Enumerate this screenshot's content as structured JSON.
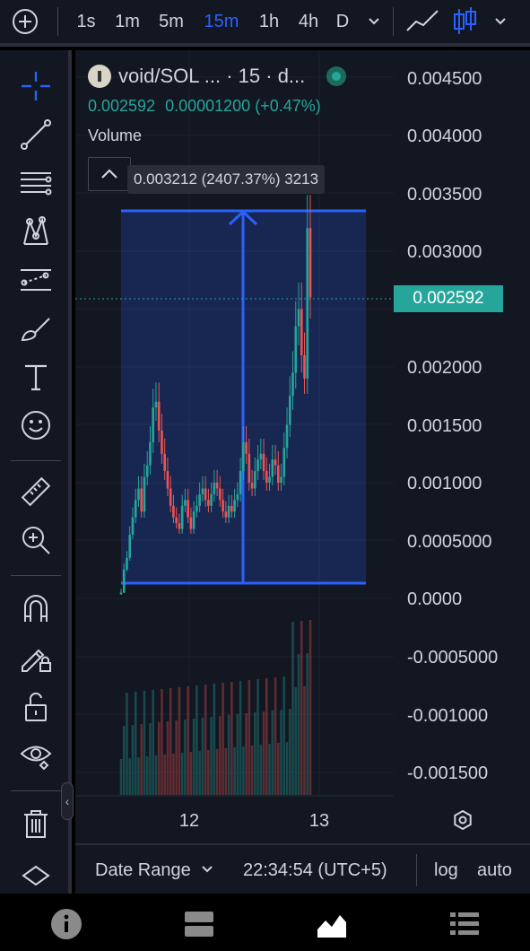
{
  "top_bar": {
    "intervals": [
      {
        "label": "1s",
        "active": false
      },
      {
        "label": "1m",
        "active": false
      },
      {
        "label": "5m",
        "active": false
      },
      {
        "label": "15m",
        "active": true
      },
      {
        "label": "1h",
        "active": false
      },
      {
        "label": "4h",
        "active": false
      },
      {
        "label": "D",
        "active": false
      }
    ],
    "icons": [
      "add-symbol-icon",
      "interval-dropdown-icon",
      "line-chart-icon",
      "candles-icon",
      "chart-type-dropdown-icon"
    ]
  },
  "left_toolbar": {
    "icons": [
      "crosshair-icon",
      "trend-line-icon",
      "fib-retracement-icon",
      "pattern-icon",
      "prediction-icon",
      "brush-icon",
      "text-icon",
      "emoji-icon",
      "ruler-icon",
      "zoom-in-icon",
      "magnet-icon",
      "lock-drawing-icon",
      "unlock-icon",
      "eye-icon",
      "trash-icon",
      "collapse-icon"
    ],
    "collapse_glyph": "‹"
  },
  "legend": {
    "symbol": "void/SOL ... · 15 · d...",
    "price": "0.002592",
    "change": "0.00001200 (+0.47%)",
    "volume_label": "Volume",
    "status_color": "#26a69a"
  },
  "measure_tool": {
    "label": "0.003212 (2407.37%) 3213",
    "color": "#2962ff"
  },
  "price_axis": {
    "labels": [
      "0.004500",
      "0.004000",
      "0.003500",
      "0.003000",
      "0.002000",
      "0.001500",
      "0.001000",
      "0.0005000",
      "0.0000",
      "-0.0005000",
      "-0.001000",
      "-0.001500"
    ],
    "current_price": "0.002592",
    "current_price_color": "#26a69a"
  },
  "time_axis": {
    "labels": [
      "12",
      "13"
    ]
  },
  "footer": {
    "date_range": "Date Range",
    "clock": "22:34:54 (UTC+5)",
    "log": "log",
    "auto": "auto"
  },
  "bottom_nav": {
    "icons": [
      "info-icon",
      "layout-icon",
      "chart-icon",
      "list-icon"
    ]
  },
  "chart_data": {
    "type": "candlestick",
    "symbol": "void/SOL",
    "interval": "15",
    "x_ticks": [
      "12",
      "13"
    ],
    "ylim": [
      -0.00175,
      0.0046
    ],
    "colors": {
      "up": "#26a69a",
      "down": "#ef5350"
    },
    "close_series": [
      5e-05,
      0.00025,
      0.00035,
      0.00055,
      0.0007,
      0.00085,
      0.00095,
      0.00075,
      0.00105,
      0.00115,
      0.00135,
      0.00165,
      0.0017,
      0.00145,
      0.00125,
      0.0011,
      0.00095,
      0.0008,
      0.0007,
      0.00065,
      0.0006,
      0.0008,
      0.00085,
      0.0007,
      0.0006,
      0.00075,
      0.0008,
      0.0009,
      0.00095,
      0.00085,
      0.0008,
      0.0009,
      0.001,
      0.00095,
      0.00085,
      0.00075,
      0.0007,
      0.0008,
      0.00075,
      0.00085,
      0.0009,
      0.0011,
      0.00135,
      0.00125,
      0.001,
      0.00095,
      0.0011,
      0.0012,
      0.00125,
      0.0011,
      0.001,
      0.00105,
      0.0012,
      0.00115,
      0.001,
      0.00105,
      0.0013,
      0.0015,
      0.00175,
      0.00195,
      0.00235,
      0.0025,
      0.0021,
      0.0019,
      0.0032,
      0.0026
    ]
  }
}
